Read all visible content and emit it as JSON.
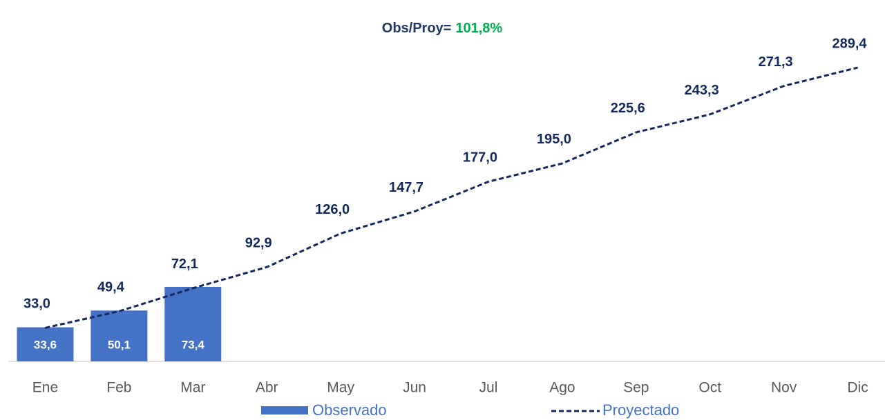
{
  "chart_data": {
    "type": "combo",
    "title": "Obs/Proy=",
    "title_value": "101,8%",
    "categories": [
      "Ene",
      "Feb",
      "Mar",
      "Abr",
      "May",
      "Jun",
      "Jul",
      "Ago",
      "Sep",
      "Oct",
      "Nov",
      "Dic"
    ],
    "series": [
      {
        "name": "Observado",
        "type": "bar",
        "color": "#4472c4",
        "values": [
          33.6,
          50.1,
          73.4,
          null,
          null,
          null,
          null,
          null,
          null,
          null,
          null,
          null
        ],
        "value_labels": [
          "33,6",
          "50,1",
          "73,4",
          null,
          null,
          null,
          null,
          null,
          null,
          null,
          null,
          null
        ]
      },
      {
        "name": "Proyectado",
        "type": "line",
        "color": "#13285c",
        "values": [
          33.0,
          49.4,
          72.1,
          92.9,
          126.0,
          147.7,
          177.0,
          195.0,
          225.6,
          243.3,
          271.3,
          289.4
        ],
        "value_labels": [
          "33,0",
          "49,4",
          "72,1",
          "92,9",
          "126,0",
          "147,7",
          "177,0",
          "195,0",
          "225,6",
          "243,3",
          "271,3",
          "289,4"
        ]
      }
    ]
  }
}
